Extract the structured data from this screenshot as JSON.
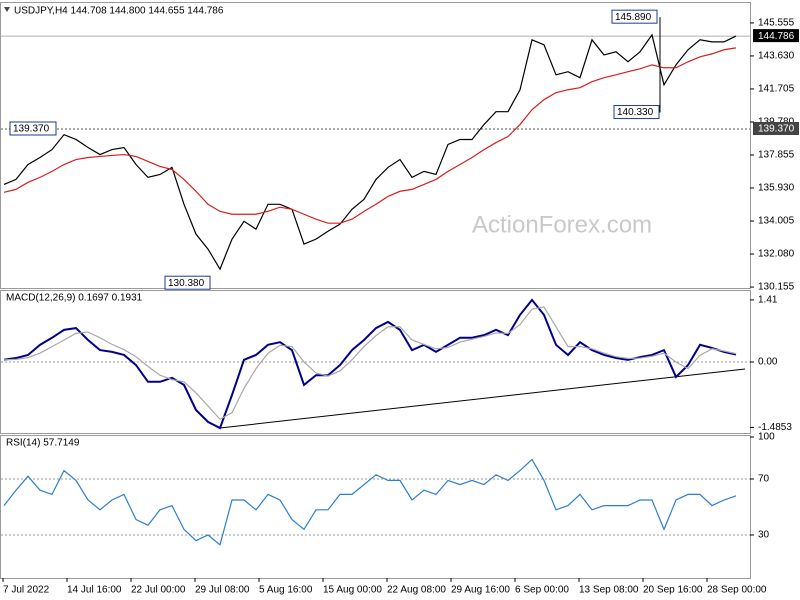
{
  "chart_data": [
    {
      "type": "line",
      "title": "USDJPY,H4  144.708 144.800 144.655 144.786",
      "watermark": "ActionForex.com",
      "ylim": [
        130.1,
        146.6
      ],
      "yticks": [
        145.555,
        {
          "value": 143.63,
          "label": "143.630"
        },
        141.705,
        {
          "value": 139.78,
          "label": "139.780"
        },
        137.855,
        {
          "value": 135.93,
          "label": "135.930"
        },
        134.005,
        {
          "value": 132.08,
          "label": "132.080"
        },
        130.155
      ],
      "series": [
        {
          "color": "#000000",
          "values": [
            136.14,
            136.43,
            137.3,
            137.71,
            138.17,
            139.04,
            138.76,
            138.29,
            137.88,
            138.17,
            138.29,
            137.3,
            136.55,
            136.72,
            137.13,
            134.98,
            133.24,
            132.37,
            131.2,
            132.95,
            133.99,
            133.53,
            134.98,
            134.98,
            134.69,
            132.66,
            132.95,
            133.41,
            133.82,
            134.69,
            135.27,
            136.43,
            137.13,
            137.59,
            136.55,
            136.9,
            136.72,
            138.47,
            138.76,
            138.76,
            139.63,
            140.38,
            140.38,
            141.66,
            144.57,
            144.28,
            142.53,
            142.71,
            142.36,
            144.57,
            143.69,
            143.87,
            143.29,
            143.87,
            144.86,
            141.95,
            143.11,
            143.99,
            144.57,
            144.45,
            144.45,
            144.79
          ]
        },
        {
          "color": "#d81e1e",
          "values": [
            135.68,
            135.85,
            136.26,
            136.55,
            136.9,
            137.3,
            137.59,
            137.71,
            137.77,
            137.83,
            137.88,
            137.77,
            137.48,
            137.19,
            137.01,
            136.43,
            135.74,
            134.98,
            134.57,
            134.4,
            134.4,
            134.4,
            134.57,
            134.81,
            134.69,
            134.4,
            134.11,
            133.88,
            133.88,
            134.11,
            134.57,
            134.98,
            135.44,
            135.74,
            135.85,
            136.14,
            136.43,
            136.9,
            137.3,
            137.71,
            138.17,
            138.58,
            138.93,
            139.63,
            140.5,
            141.08,
            141.49,
            141.66,
            141.78,
            142.13,
            142.36,
            142.53,
            142.71,
            142.88,
            143.11,
            142.94,
            142.94,
            143.29,
            143.58,
            143.75,
            143.99,
            144.1
          ]
        }
      ],
      "annotations": [
        {
          "value": 145.89,
          "label": "145.890"
        },
        {
          "value": 140.33,
          "label": "140.330"
        },
        {
          "value": 130.38,
          "label": "130.380"
        }
      ],
      "level": {
        "value": 139.37,
        "label": "139.370"
      },
      "last": {
        "value": 144.786,
        "label": "144.786"
      }
    },
    {
      "type": "line",
      "title": "MACD(12,26,9) 0.1697 0.1931",
      "ylim": [
        -1.59,
        1.59
      ],
      "yticks": [
        1.41,
        {
          "value": 0,
          "label": "0.00"
        },
        -1.4853
      ],
      "levels": [
        0
      ],
      "series": [
        {
          "color": "#00008b",
          "values": [
            0.05,
            0.09,
            0.16,
            0.39,
            0.55,
            0.73,
            0.77,
            0.5,
            0.27,
            0.23,
            0.16,
            -0.07,
            -0.45,
            -0.45,
            -0.36,
            -0.52,
            -1.09,
            -1.36,
            -1.5,
            -0.75,
            0.05,
            0.16,
            0.39,
            0.45,
            0.27,
            -0.52,
            -0.3,
            -0.3,
            -0.07,
            0.27,
            0.5,
            0.77,
            0.91,
            0.73,
            0.27,
            0.39,
            0.23,
            0.39,
            0.55,
            0.55,
            0.61,
            0.73,
            0.61,
            1.07,
            1.41,
            1.07,
            0.39,
            0.16,
            0.45,
            0.27,
            0.16,
            0.09,
            0.05,
            0.11,
            0.16,
            0.27,
            -0.34,
            -0.07,
            0.39,
            0.32,
            0.23,
            0.17
          ]
        },
        {
          "color": "#a8a8a8",
          "values": [
            0.05,
            0.06,
            0.1,
            0.2,
            0.35,
            0.5,
            0.65,
            0.68,
            0.55,
            0.4,
            0.28,
            0.12,
            -0.1,
            -0.3,
            -0.4,
            -0.45,
            -0.7,
            -1.0,
            -1.3,
            -1.15,
            -0.6,
            -0.15,
            0.2,
            0.38,
            0.35,
            0.0,
            -0.25,
            -0.32,
            -0.2,
            0.05,
            0.35,
            0.6,
            0.8,
            0.8,
            0.5,
            0.4,
            0.3,
            0.33,
            0.45,
            0.52,
            0.58,
            0.66,
            0.65,
            0.85,
            1.2,
            1.25,
            0.8,
            0.35,
            0.35,
            0.3,
            0.2,
            0.12,
            0.08,
            0.09,
            0.13,
            0.2,
            0.0,
            -0.15,
            0.15,
            0.3,
            0.25,
            0.19
          ]
        }
      ]
    },
    {
      "type": "line",
      "title": "RSI(14) 57.7149",
      "ylim": [
        0,
        100
      ],
      "yticks": [
        100,
        70,
        30
      ],
      "levels": [
        70,
        30
      ],
      "series": [
        {
          "color": "#2c7fd0",
          "values": [
            51,
            62,
            72,
            62,
            59,
            76,
            69,
            55,
            48,
            55,
            59,
            41,
            37,
            48,
            51,
            34,
            26,
            30,
            23,
            55,
            55,
            48,
            59,
            55,
            41,
            34,
            48,
            48,
            59,
            59,
            66,
            73,
            69,
            69,
            55,
            62,
            59,
            69,
            66,
            69,
            66,
            73,
            69,
            76,
            84,
            69,
            48,
            51,
            59,
            48,
            51,
            51,
            51,
            55,
            55,
            34,
            55,
            59,
            59,
            51,
            55,
            58
          ]
        }
      ],
      "xtick_labels": [
        "7 Jul 2022",
        "14 Jul 16:00",
        "22 Jul 00:00",
        "29 Jul 08:00",
        "5 Aug 16:00",
        "15 Aug 00:00",
        "22 Aug 08:00",
        "29 Aug 16:00",
        "6 Sep 00:00",
        "13 Sep 08:00",
        "20 Sep 16:00",
        "28 Sep 00:00"
      ]
    }
  ]
}
